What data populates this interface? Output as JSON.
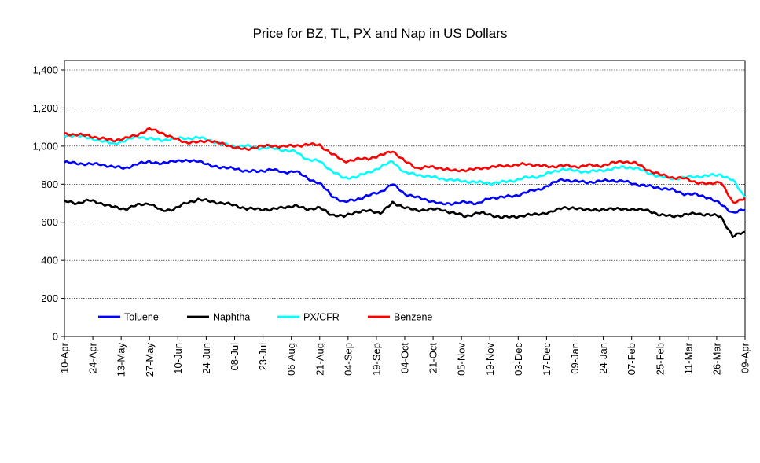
{
  "chart_data": {
    "type": "line",
    "title": "Price for BZ, TL, PX and Nap in US Dollars",
    "xlabel": "",
    "ylabel": "",
    "ylim": [
      0,
      1400
    ],
    "yticks": [
      0,
      200,
      400,
      600,
      800,
      1000,
      1200,
      1400
    ],
    "ytick_labels": [
      "0",
      "200",
      "400",
      "600",
      "800",
      "1,000",
      "1,200",
      "1,400"
    ],
    "xtick_labels": [
      "10-Apr",
      "24-Apr",
      "13-May",
      "27-May",
      "10-Jun",
      "24-Jun",
      "08-Jul",
      "23-Jul",
      "06-Aug",
      "21-Aug",
      "04-Sep",
      "19-Sep",
      "04-Oct",
      "21-Oct",
      "05-Nov",
      "19-Nov",
      "03-Dec",
      "17-Dec",
      "09-Jan",
      "24-Jan",
      "07-Feb",
      "25-Feb",
      "11-Mar",
      "26-Mar",
      "09-Apr"
    ],
    "grid": "horizontal",
    "legend": "bottom-left inside",
    "series": [
      {
        "name": "Toluene",
        "color": "#0000ff",
        "values": [
          915,
          910,
          905,
          905,
          890,
          885,
          905,
          920,
          905,
          925,
          920,
          925,
          895,
          890,
          880,
          870,
          865,
          880,
          860,
          870,
          830,
          805,
          740,
          705,
          720,
          740,
          760,
          800,
          750,
          730,
          715,
          695,
          700,
          705,
          700,
          725,
          735,
          735,
          760,
          770,
          800,
          825,
          815,
          810,
          815,
          820,
          815,
          800,
          790,
          780,
          770,
          750,
          745,
          730,
          695,
          650,
          665
        ]
      },
      {
        "name": "Naphtha",
        "color": "#000000",
        "values": [
          710,
          700,
          715,
          700,
          680,
          670,
          690,
          700,
          660,
          670,
          700,
          720,
          710,
          700,
          690,
          670,
          670,
          665,
          680,
          685,
          670,
          675,
          640,
          630,
          655,
          660,
          650,
          700,
          680,
          660,
          670,
          665,
          650,
          630,
          650,
          640,
          625,
          630,
          635,
          645,
          650,
          680,
          670,
          670,
          660,
          675,
          665,
          670,
          660,
          640,
          630,
          640,
          645,
          640,
          630,
          525,
          550
        ]
      },
      {
        "name": "PX/CFR",
        "color": "#00ffff",
        "values": [
          1050,
          1060,
          1040,
          1030,
          1010,
          1030,
          1050,
          1040,
          1030,
          1040,
          1040,
          1045,
          1030,
          1010,
          1000,
          1000,
          990,
          990,
          980,
          970,
          930,
          920,
          870,
          830,
          840,
          860,
          890,
          920,
          860,
          850,
          840,
          830,
          820,
          815,
          810,
          805,
          810,
          820,
          835,
          840,
          860,
          880,
          870,
          865,
          870,
          880,
          890,
          885,
          860,
          840,
          830,
          835,
          840,
          845,
          850,
          820,
          730
        ]
      },
      {
        "name": "Benzene",
        "color": "#ff0000",
        "values": [
          1065,
          1060,
          1055,
          1040,
          1030,
          1040,
          1060,
          1090,
          1070,
          1040,
          1020,
          1020,
          1030,
          1010,
          995,
          980,
          1000,
          1000,
          1000,
          1000,
          1010,
          1005,
          960,
          920,
          930,
          935,
          950,
          975,
          920,
          885,
          890,
          885,
          870,
          875,
          880,
          890,
          895,
          900,
          905,
          900,
          890,
          900,
          890,
          900,
          895,
          910,
          920,
          910,
          875,
          850,
          835,
          830,
          810,
          800,
          815,
          700,
          730
        ]
      }
    ]
  }
}
